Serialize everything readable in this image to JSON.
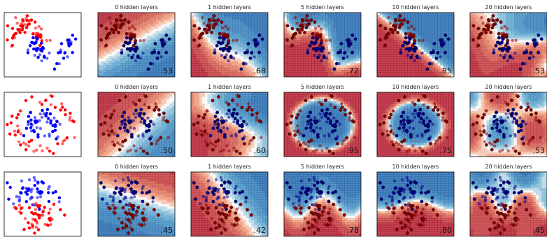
{
  "chart_data": {
    "type": "scatter",
    "column_titles": [
      "",
      "0 hidden layers",
      "1 hidden layers",
      "5 hidden layers",
      "10 hidden layers",
      "20 hidden layers"
    ],
    "datasets": [
      "moons",
      "circles",
      "linearly separable"
    ],
    "scores": [
      [
        ".53",
        ".68",
        ".72",
        ".85",
        ".53"
      ],
      [
        ".50",
        ".60",
        ".95",
        ".75",
        ".53"
      ],
      [
        ".45",
        ".42",
        ".78",
        ".80",
        ".45"
      ]
    ],
    "colors": {
      "class_a": "#ff0000",
      "class_b": "#0000ff",
      "train_class_a": "#8b0000",
      "train_class_b": "#00008b",
      "contour_red": "#b2182b",
      "contour_white": "#f7f7f7",
      "contour_blue": "#2166ac"
    },
    "grid": false,
    "axes_ticks": false
  }
}
